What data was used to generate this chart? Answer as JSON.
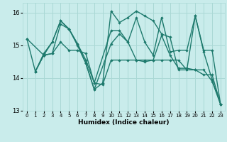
{
  "lines": [
    {
      "x": [
        0,
        1,
        2,
        3,
        4,
        5,
        6,
        7,
        8,
        9,
        10,
        11,
        12,
        13,
        14,
        15,
        16,
        17,
        18,
        19,
        20,
        21,
        22,
        23
      ],
      "y": [
        15.2,
        14.2,
        14.75,
        15.1,
        15.75,
        15.5,
        15.05,
        14.45,
        13.65,
        13.85,
        16.05,
        15.7,
        15.85,
        16.05,
        15.9,
        15.75,
        15.35,
        15.25,
        14.25,
        14.25,
        15.9,
        14.8,
        13.95,
        13.2
      ]
    },
    {
      "x": [
        0,
        2,
        3,
        4,
        5,
        6,
        7,
        8,
        10,
        11,
        12,
        13,
        14,
        15,
        16,
        17,
        18,
        19,
        20,
        21,
        22,
        23
      ],
      "y": [
        15.2,
        14.7,
        14.75,
        15.65,
        15.5,
        15.05,
        14.55,
        13.85,
        15.45,
        15.45,
        15.1,
        14.55,
        14.5,
        14.55,
        15.3,
        14.7,
        14.3,
        14.3,
        14.25,
        14.25,
        13.9,
        13.2
      ]
    },
    {
      "x": [
        1,
        2,
        3,
        4,
        5,
        6,
        7,
        8,
        10,
        11,
        12,
        13,
        14,
        15,
        16,
        17,
        18,
        19,
        20,
        21,
        22,
        23
      ],
      "y": [
        14.2,
        14.7,
        15.1,
        15.75,
        15.5,
        15.0,
        14.45,
        13.65,
        15.05,
        15.35,
        15.1,
        15.85,
        15.1,
        14.7,
        15.85,
        14.8,
        14.85,
        14.85,
        15.9,
        14.85,
        14.85,
        13.2
      ]
    },
    {
      "x": [
        1,
        2,
        3,
        4,
        5,
        6,
        7,
        8,
        9,
        10,
        11,
        12,
        13,
        14,
        15,
        16,
        17,
        18,
        19,
        20,
        21,
        22,
        23
      ],
      "y": [
        14.2,
        14.7,
        14.75,
        15.1,
        14.85,
        14.85,
        14.75,
        13.85,
        13.8,
        14.55,
        14.55,
        14.55,
        14.55,
        14.55,
        14.55,
        14.55,
        14.55,
        14.55,
        14.25,
        14.25,
        14.1,
        14.1,
        13.2
      ]
    }
  ],
  "xlabel": "Humidex (Indice chaleur)",
  "xlim": [
    -0.5,
    23.5
  ],
  "ylim": [
    13.0,
    16.3
  ],
  "yticks": [
    13,
    14,
    15,
    16
  ],
  "xticks": [
    0,
    1,
    2,
    3,
    4,
    5,
    6,
    7,
    8,
    9,
    10,
    11,
    12,
    13,
    14,
    15,
    16,
    17,
    18,
    19,
    20,
    21,
    22,
    23
  ],
  "bg_color": "#c9eceb",
  "grid_color": "#aad8d5",
  "line_color": "#1e7a6d",
  "font_color": "#000000"
}
